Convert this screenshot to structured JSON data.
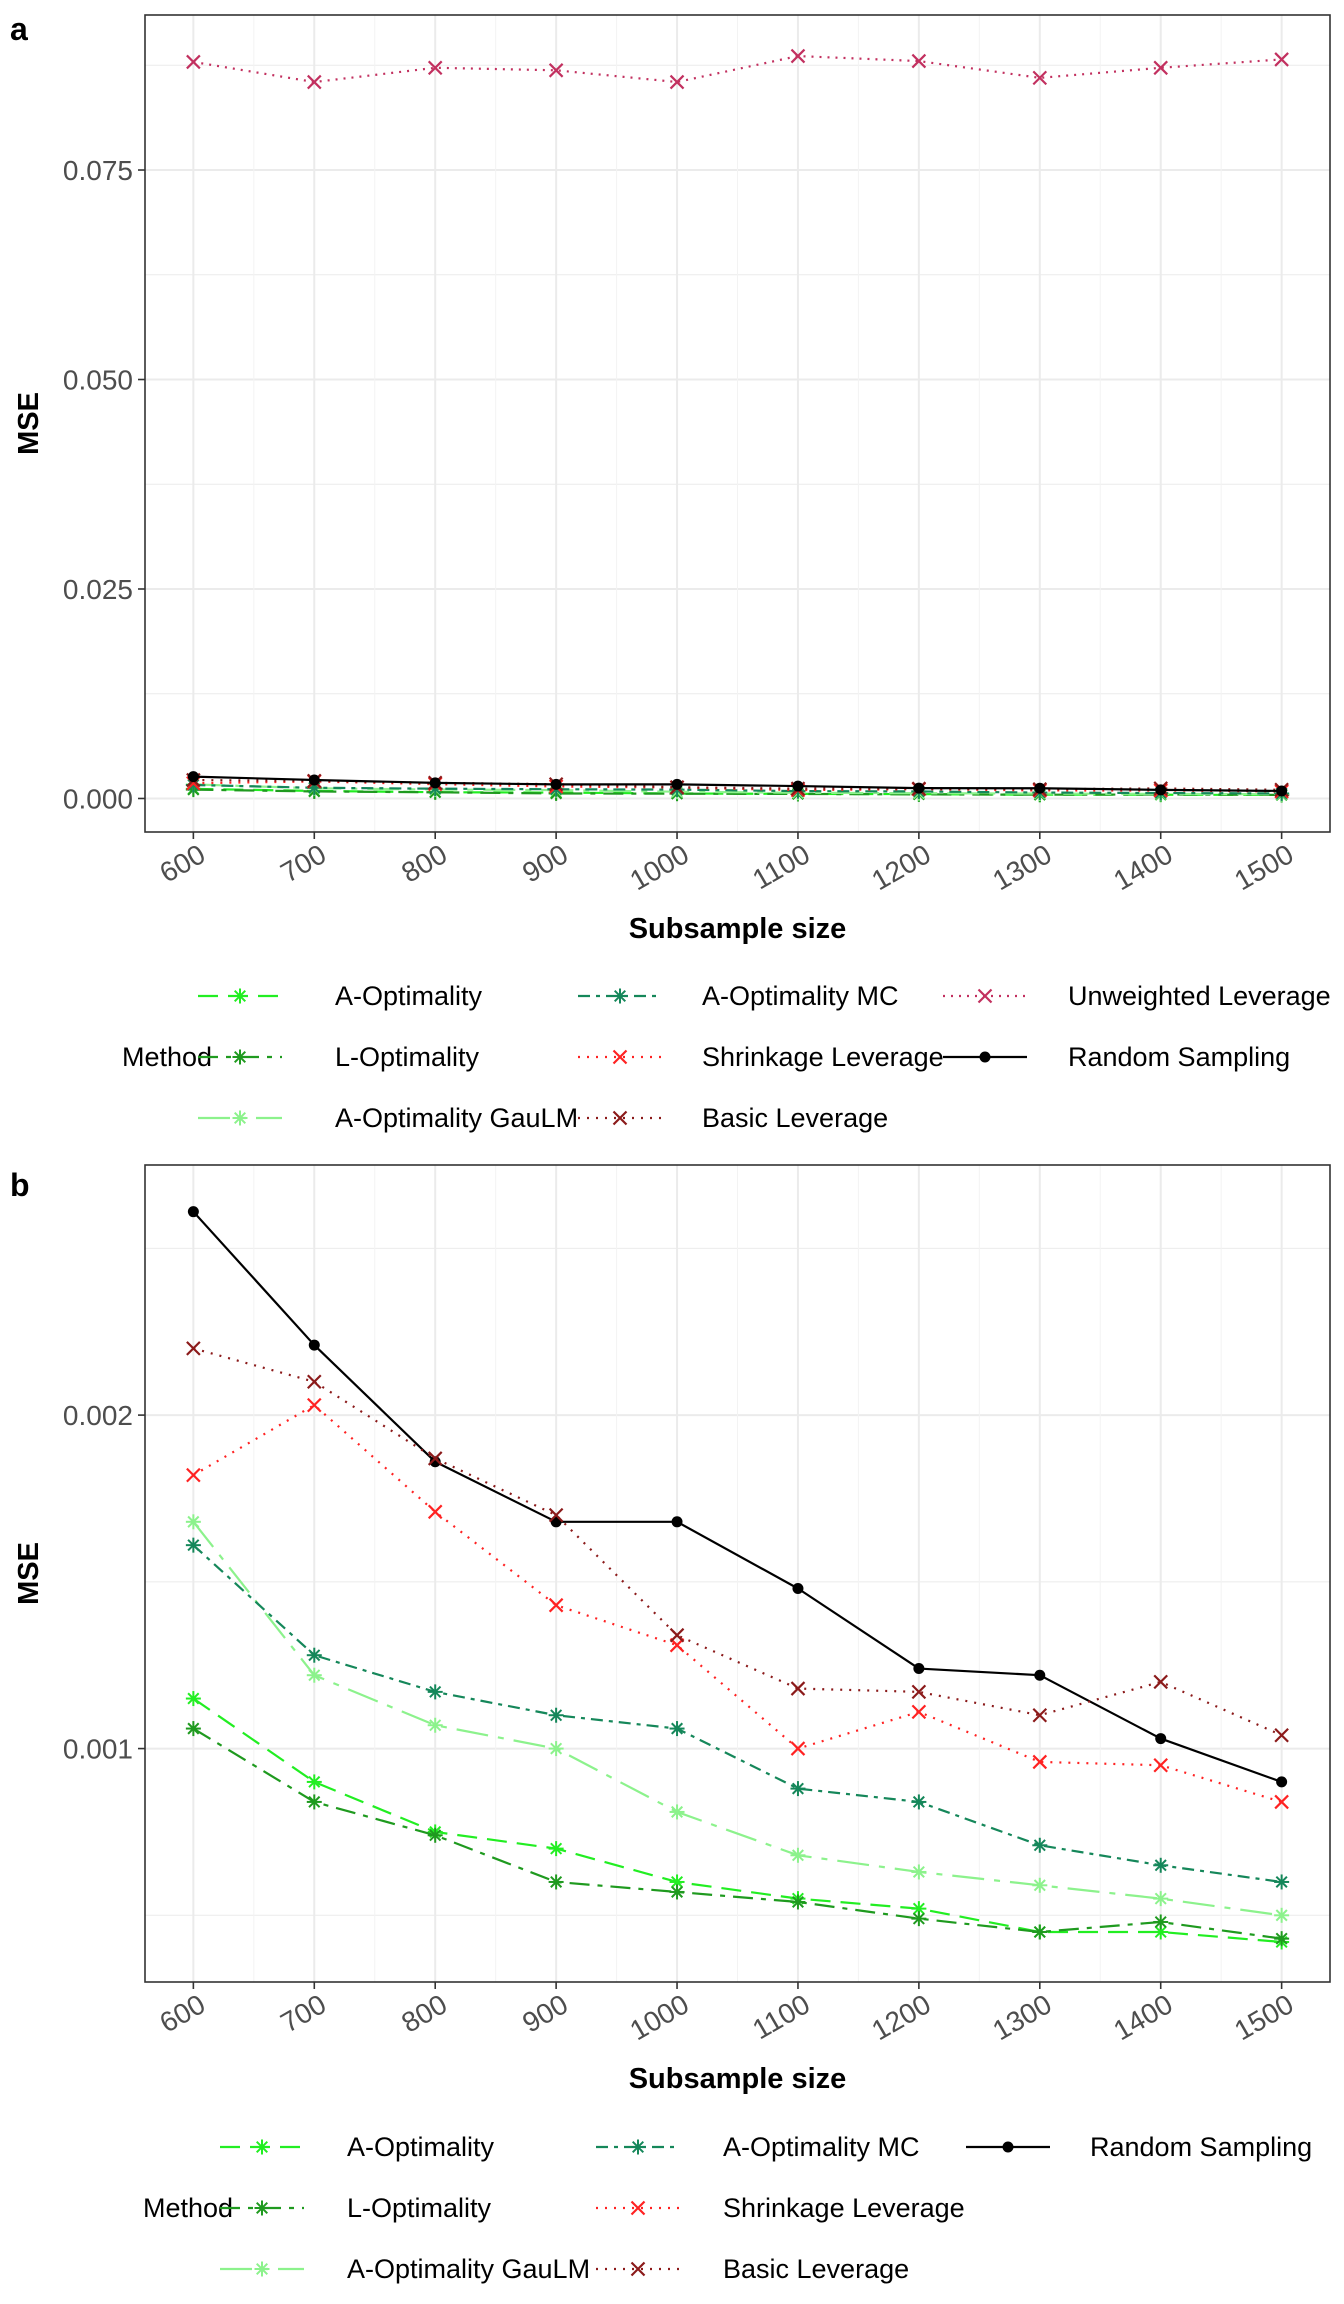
{
  "figure": {
    "panel_a_tag": "a",
    "panel_b_tag": "b"
  },
  "chart_data": [
    {
      "type": "line",
      "panel": "a",
      "xlabel": "Subsample size",
      "ylabel": "MSE",
      "x": [
        600,
        700,
        800,
        900,
        1000,
        1100,
        1200,
        1300,
        1400,
        1500
      ],
      "ylim": [
        -0.004,
        0.0935
      ],
      "yticks": [
        0.0,
        0.025,
        0.05,
        0.075
      ],
      "ytick_labels": [
        "0.000",
        "0.025",
        "0.050",
        "0.075"
      ],
      "grid": true,
      "legend_title": "Method",
      "legend_position": "bottom",
      "series": [
        {
          "name": "A-Optimality",
          "color": "#22ee22",
          "dash": "20,10",
          "marker": "asterisk",
          "values": [
            0.00115,
            0.0009,
            0.00075,
            0.0007,
            0.0006,
            0.00055,
            0.00052,
            0.00045,
            0.00045,
            0.00042
          ]
        },
        {
          "name": "L-Optimality",
          "color": "#1f9a1f",
          "dash": "20,8,5,8",
          "marker": "asterisk",
          "values": [
            0.00106,
            0.00084,
            0.00074,
            0.0006,
            0.00057,
            0.00054,
            0.00049,
            0.00045,
            0.00048,
            0.00043
          ]
        },
        {
          "name": "A-Optimality GauLM",
          "color": "#8cf28c",
          "dash": "32,10,6,10",
          "marker": "asterisk",
          "values": [
            0.00168,
            0.00122,
            0.00107,
            0.001,
            0.00081,
            0.00068,
            0.00063,
            0.00059,
            0.00055,
            0.0005
          ]
        },
        {
          "name": "A-Optimality MC",
          "color": "#15875a",
          "dash": "12,6,4,6",
          "marker": "asterisk",
          "values": [
            0.00161,
            0.00128,
            0.00117,
            0.0011,
            0.00106,
            0.00088,
            0.00084,
            0.00071,
            0.00065,
            0.0006
          ]
        },
        {
          "name": "Unweighted Leverage",
          "color": "#c2305f",
          "dash": "2,6",
          "marker": "x",
          "values": [
            0.0879,
            0.0855,
            0.0872,
            0.0869,
            0.0855,
            0.0886,
            0.088,
            0.086,
            0.0872,
            0.0882
          ]
        },
        {
          "name": "Shrinkage Leverage",
          "color": "#ff2222",
          "dash": "2,7",
          "marker": "x",
          "values": [
            0.00182,
            0.00203,
            0.00171,
            0.00143,
            0.00131,
            0.001,
            0.00111,
            0.00096,
            0.00095,
            0.00084
          ]
        },
        {
          "name": "Basic Leverage",
          "color": "#8b1a1a",
          "dash": "2,7",
          "marker": "x",
          "values": [
            0.0022,
            0.0021,
            0.00187,
            0.0017,
            0.00134,
            0.00118,
            0.00117,
            0.0011,
            0.0012,
            0.00104
          ]
        },
        {
          "name": "Random Sampling",
          "color": "#000000",
          "dash": "",
          "marker": "dot",
          "values": [
            0.00261,
            0.00221,
            0.00186,
            0.00168,
            0.00168,
            0.00148,
            0.00124,
            0.00122,
            0.00103,
            0.0009
          ]
        }
      ]
    },
    {
      "type": "line",
      "panel": "b",
      "xlabel": "Subsample size",
      "ylabel": "MSE",
      "x": [
        600,
        700,
        800,
        900,
        1000,
        1100,
        1200,
        1300,
        1400,
        1500
      ],
      "ylim": [
        0.0003,
        0.00275
      ],
      "yticks": [
        0.001,
        0.002
      ],
      "ytick_labels": [
        "0.001",
        "0.002"
      ],
      "grid": true,
      "legend_title": "Method",
      "legend_position": "bottom",
      "series": [
        {
          "name": "A-Optimality",
          "color": "#22ee22",
          "dash": "20,10",
          "marker": "asterisk",
          "values": [
            0.00115,
            0.0009,
            0.00075,
            0.0007,
            0.0006,
            0.00055,
            0.00052,
            0.00045,
            0.00045,
            0.00042
          ]
        },
        {
          "name": "L-Optimality",
          "color": "#1f9a1f",
          "dash": "20,8,5,8",
          "marker": "asterisk",
          "values": [
            0.00106,
            0.00084,
            0.00074,
            0.0006,
            0.00057,
            0.00054,
            0.00049,
            0.00045,
            0.00048,
            0.00043
          ]
        },
        {
          "name": "A-Optimality GauLM",
          "color": "#8cf28c",
          "dash": "32,10,6,10",
          "marker": "asterisk",
          "values": [
            0.00168,
            0.00122,
            0.00107,
            0.001,
            0.00081,
            0.00068,
            0.00063,
            0.00059,
            0.00055,
            0.0005
          ]
        },
        {
          "name": "A-Optimality MC",
          "color": "#15875a",
          "dash": "12,6,4,6",
          "marker": "asterisk",
          "values": [
            0.00161,
            0.00128,
            0.00117,
            0.0011,
            0.00106,
            0.00088,
            0.00084,
            0.00071,
            0.00065,
            0.0006
          ]
        },
        {
          "name": "Random Sampling",
          "color": "#000000",
          "dash": "",
          "marker": "dot",
          "values": [
            0.00261,
            0.00221,
            0.00186,
            0.00168,
            0.00168,
            0.00148,
            0.00124,
            0.00122,
            0.00103,
            0.0009
          ]
        },
        {
          "name": "Shrinkage Leverage",
          "color": "#ff2222",
          "dash": "2,7",
          "marker": "x",
          "values": [
            0.00182,
            0.00203,
            0.00171,
            0.00143,
            0.00131,
            0.001,
            0.00111,
            0.00096,
            0.00095,
            0.00084
          ]
        },
        {
          "name": "Basic Leverage",
          "color": "#8b1a1a",
          "dash": "2,7",
          "marker": "x",
          "values": [
            0.0022,
            0.0021,
            0.00187,
            0.0017,
            0.00134,
            0.00118,
            0.00117,
            0.0011,
            0.0012,
            0.00104
          ]
        }
      ]
    }
  ]
}
